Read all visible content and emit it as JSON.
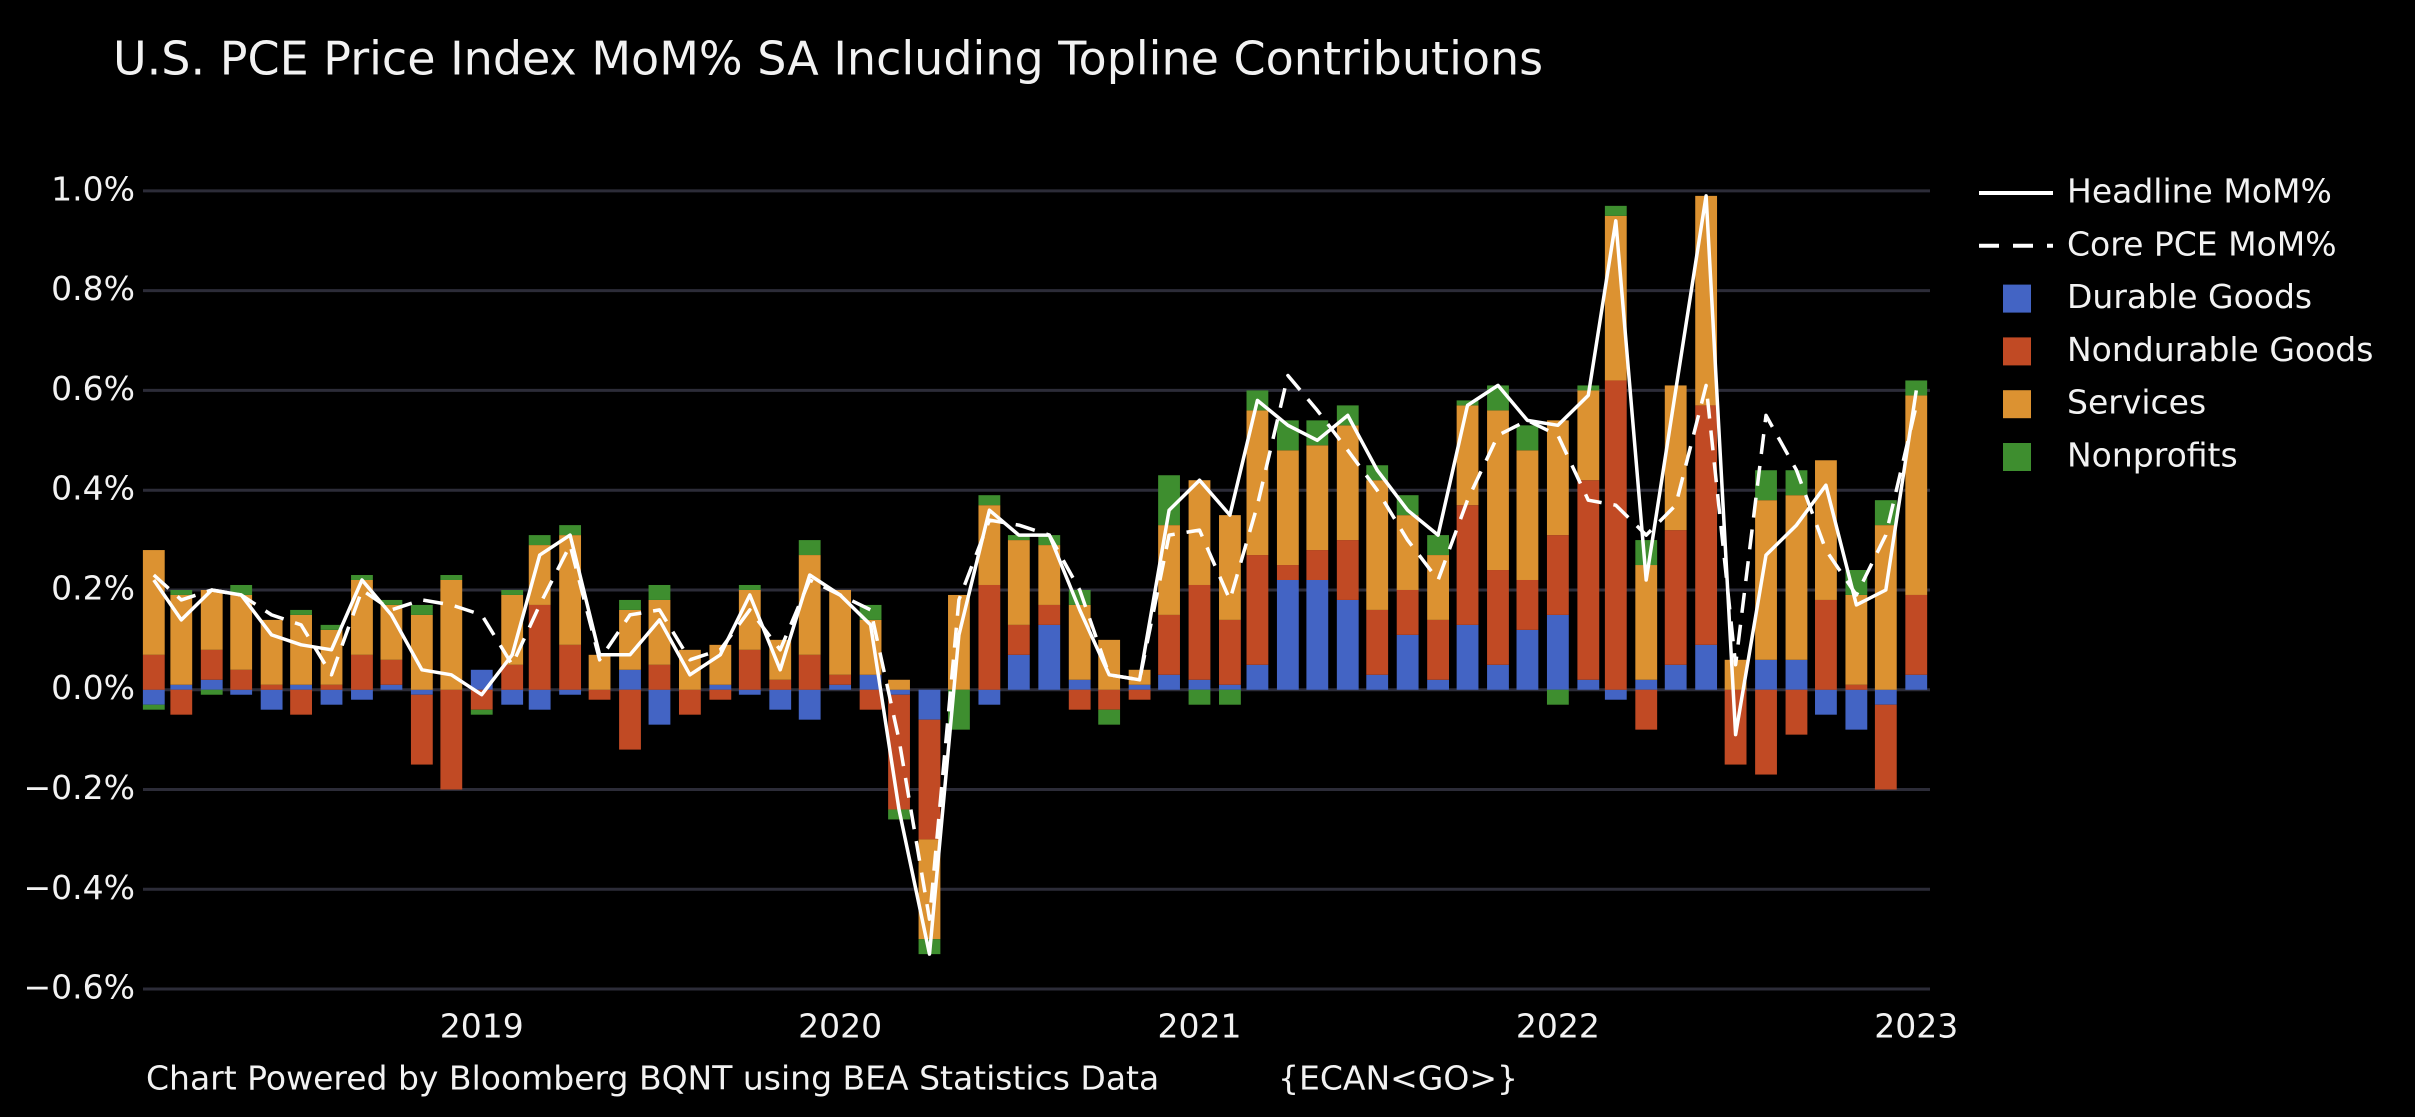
{
  "chart_data": {
    "type": "bar",
    "title": "U.S. PCE Price Index MoM% SA Including Topline Contributions",
    "notes": [
      "Chart Powered by Bloomberg BQNT using BEA Statistics Data",
      "{ECAN<GO>}"
    ],
    "x": [
      "2018-02",
      "2018-03",
      "2018-04",
      "2018-05",
      "2018-06",
      "2018-07",
      "2018-08",
      "2018-09",
      "2018-10",
      "2018-11",
      "2018-12",
      "2019-01",
      "2019-02",
      "2019-03",
      "2019-04",
      "2019-05",
      "2019-06",
      "2019-07",
      "2019-08",
      "2019-09",
      "2019-10",
      "2019-11",
      "2019-12",
      "2020-01",
      "2020-02",
      "2020-03",
      "2020-04",
      "2020-05",
      "2020-06",
      "2020-07",
      "2020-08",
      "2020-09",
      "2020-10",
      "2020-11",
      "2020-12",
      "2021-01",
      "2021-02",
      "2021-03",
      "2021-04",
      "2021-05",
      "2021-06",
      "2021-07",
      "2021-08",
      "2021-09",
      "2021-10",
      "2021-11",
      "2021-12",
      "2022-01",
      "2022-02",
      "2022-03",
      "2022-04",
      "2022-05",
      "2022-06",
      "2022-07",
      "2022-08",
      "2022-09",
      "2022-10",
      "2022-11",
      "2022-12",
      "2023-01"
    ],
    "xlim": [
      "2018-01-21",
      "2023-01-15"
    ],
    "xticks": [
      "2019",
      "2020",
      "2021",
      "2022",
      "2023"
    ],
    "ylim": [
      -0.65,
      1.1
    ],
    "yticks": [
      {
        "value": -0.6,
        "label": "−0.6%"
      },
      {
        "value": -0.4,
        "label": "−0.4%"
      },
      {
        "value": -0.2,
        "label": "−0.2%"
      },
      {
        "value": 0,
        "label": "0.0%"
      },
      {
        "value": 0.2,
        "label": "0.2%"
      },
      {
        "value": 0.4,
        "label": "0.4%"
      },
      {
        "value": 0.6,
        "label": "0.6%"
      },
      {
        "value": 0.8,
        "label": "0.8%"
      },
      {
        "value": 1.0,
        "label": "1.0%"
      }
    ],
    "grid": true,
    "legend": "right",
    "series": [
      {
        "name": "Headline MoM%",
        "type": "line",
        "dash": false,
        "color": "#ffffff",
        "values": [
          0.22,
          0.14,
          0.2,
          0.19,
          0.11,
          0.09,
          0.08,
          0.22,
          0.15,
          0.04,
          0.03,
          -0.01,
          0.07,
          0.27,
          0.31,
          0.07,
          0.07,
          0.14,
          0.03,
          0.07,
          0.19,
          0.04,
          0.23,
          0.19,
          0.13,
          -0.24,
          -0.53,
          0.11,
          0.36,
          0.31,
          0.31,
          0.16,
          0.03,
          0.02,
          0.36,
          0.42,
          0.35,
          0.58,
          0.53,
          0.5,
          0.55,
          0.44,
          0.36,
          0.31,
          0.57,
          0.61,
          0.54,
          0.53,
          0.59,
          0.94,
          0.22,
          0.6,
          0.99,
          -0.09,
          0.27,
          0.33,
          0.41,
          0.17,
          0.2,
          0.6
        ]
      },
      {
        "name": "Core PCE MoM%",
        "type": "line",
        "dash": true,
        "color": "#ffffff",
        "values": [
          0.23,
          0.18,
          0.2,
          0.19,
          0.15,
          0.13,
          0.03,
          0.2,
          0.16,
          0.18,
          0.17,
          0.15,
          0.05,
          0.17,
          0.29,
          0.06,
          0.15,
          0.16,
          0.06,
          0.08,
          0.16,
          0.08,
          0.22,
          0.19,
          0.16,
          -0.1,
          -0.46,
          0.18,
          0.34,
          0.33,
          0.31,
          0.2,
          0.03,
          0.02,
          0.31,
          0.32,
          0.18,
          0.37,
          0.63,
          0.56,
          0.48,
          0.4,
          0.3,
          0.22,
          0.38,
          0.51,
          0.54,
          0.51,
          0.38,
          0.37,
          0.31,
          0.37,
          0.61,
          0.05,
          0.55,
          0.44,
          0.28,
          0.19,
          0.31,
          0.57
        ]
      },
      {
        "name": "Durable Goods",
        "type": "bar",
        "color": "#4364c4",
        "values": [
          -0.03,
          0.01,
          0.02,
          -0.01,
          -0.04,
          0.01,
          -0.03,
          -0.02,
          0.01,
          -0.01,
          0.0,
          0.04,
          -0.03,
          -0.04,
          -0.01,
          0.0,
          0.04,
          -0.07,
          0.0,
          0.01,
          -0.01,
          -0.04,
          -0.06,
          0.01,
          0.03,
          -0.01,
          -0.06,
          0.0,
          -0.03,
          0.07,
          0.13,
          0.02,
          0.0,
          0.01,
          0.03,
          0.02,
          0.01,
          0.05,
          0.22,
          0.22,
          0.18,
          0.03,
          0.11,
          0.02,
          0.13,
          0.05,
          0.12,
          0.15,
          0.02,
          -0.02,
          0.02,
          0.05,
          0.09,
          0.0,
          0.06,
          0.06,
          -0.05,
          -0.08,
          -0.03,
          0.03
        ]
      },
      {
        "name": "Nondurable Goods",
        "type": "bar",
        "color": "#c14a24",
        "values": [
          0.07,
          -0.05,
          0.06,
          0.04,
          0.01,
          -0.05,
          0.01,
          0.07,
          0.05,
          -0.14,
          -0.2,
          -0.04,
          0.05,
          0.17,
          0.09,
          -0.02,
          -0.12,
          0.05,
          -0.05,
          -0.02,
          0.08,
          0.02,
          0.07,
          0.02,
          -0.04,
          -0.23,
          -0.24,
          0.0,
          0.21,
          0.06,
          0.04,
          -0.04,
          -0.04,
          -0.02,
          0.12,
          0.19,
          0.13,
          0.22,
          0.03,
          0.06,
          0.12,
          0.13,
          0.09,
          0.12,
          0.24,
          0.19,
          0.1,
          0.16,
          0.4,
          0.62,
          -0.08,
          0.27,
          0.48,
          -0.15,
          -0.17,
          -0.09,
          0.18,
          0.01,
          -0.17,
          0.16
        ]
      },
      {
        "name": "Services",
        "type": "bar",
        "color": "#dc9231",
        "values": [
          0.21,
          0.18,
          0.12,
          0.15,
          0.13,
          0.14,
          0.11,
          0.15,
          0.11,
          0.15,
          0.22,
          0.0,
          0.14,
          0.12,
          0.22,
          0.07,
          0.12,
          0.13,
          0.08,
          0.08,
          0.12,
          0.08,
          0.2,
          0.17,
          0.11,
          0.02,
          -0.2,
          0.19,
          0.16,
          0.17,
          0.12,
          0.15,
          0.1,
          0.03,
          0.18,
          0.21,
          0.21,
          0.29,
          0.23,
          0.21,
          0.23,
          0.26,
          0.15,
          0.13,
          0.2,
          0.32,
          0.26,
          0.23,
          0.18,
          0.33,
          0.23,
          0.29,
          0.42,
          0.06,
          0.32,
          0.33,
          0.28,
          0.18,
          0.33,
          0.4
        ]
      },
      {
        "name": "Nonprofits",
        "type": "bar",
        "color": "#3e8e2f",
        "values": [
          -0.01,
          0.01,
          -0.01,
          0.02,
          0.0,
          0.01,
          0.01,
          0.01,
          0.01,
          0.02,
          0.01,
          -0.01,
          0.01,
          0.02,
          0.02,
          0.0,
          0.02,
          0.03,
          0.0,
          0.0,
          0.01,
          0.0,
          0.03,
          0.0,
          0.03,
          -0.02,
          -0.03,
          -0.08,
          0.02,
          0.01,
          0.02,
          0.03,
          -0.03,
          0.0,
          0.1,
          -0.03,
          -0.03,
          0.04,
          0.06,
          0.05,
          0.04,
          0.03,
          0.04,
          0.04,
          0.01,
          0.05,
          0.05,
          -0.03,
          0.01,
          0.02,
          0.05,
          0.0,
          0.0,
          0.0,
          0.06,
          0.05,
          0.0,
          0.05,
          0.05,
          0.03
        ]
      }
    ]
  }
}
